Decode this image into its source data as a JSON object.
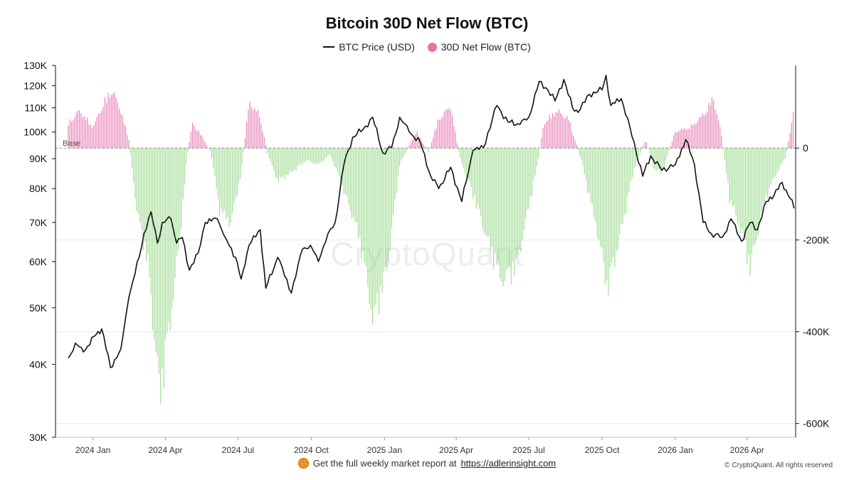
{
  "chart_data": {
    "type": "bar",
    "title": "Bitcoin 30D Net Flow (BTC)",
    "legend": [
      {
        "label": "BTC Price (USD)",
        "kind": "line",
        "color": "#111111"
      },
      {
        "label": "30D Net Flow (BTC)",
        "kind": "dot",
        "color": "#e472ad"
      }
    ],
    "legend_placement": "top-center",
    "baseline_label": "Base",
    "watermark": "CryptoQuant",
    "grid": true,
    "x_ticks": [
      "2024 Jan",
      "2024 Apr",
      "2024 Jul",
      "2024 Oct",
      "2025 Jan",
      "2025 Apr",
      "2025 Jul",
      "2025 Oct",
      "2026 Jan",
      "2026 Apr"
    ],
    "x_range": [
      "2023-11-15",
      "2026-06-01"
    ],
    "y_left": {
      "scale": "log",
      "ticks": [
        "130K",
        "120K",
        "110K",
        "100K",
        "90K",
        "80K",
        "70K",
        "60K",
        "50K",
        "40K",
        "30K"
      ],
      "tick_values": [
        130000,
        120000,
        110000,
        100000,
        90000,
        80000,
        70000,
        60000,
        50000,
        40000,
        30000
      ],
      "ylim": [
        30000,
        130000
      ]
    },
    "y_right": {
      "scale": "linear",
      "ticks": [
        "0",
        "-200K",
        "-400K",
        "-600K"
      ],
      "tick_values": [
        0,
        -200000,
        -400000,
        -600000
      ],
      "ylim": [
        -630000,
        180000
      ]
    },
    "series": [
      {
        "name": "BTC Price (USD)",
        "axis": "left",
        "color": "#111111",
        "points": [
          [
            "2023-12-01",
            41000
          ],
          [
            "2023-12-10",
            43500
          ],
          [
            "2023-12-20",
            42000
          ],
          [
            "2024-01-05",
            45000
          ],
          [
            "2024-01-12",
            46000
          ],
          [
            "2024-01-23",
            39500
          ],
          [
            "2024-02-05",
            42500
          ],
          [
            "2024-02-15",
            52000
          ],
          [
            "2024-02-28",
            61000
          ],
          [
            "2024-03-05",
            67000
          ],
          [
            "2024-03-14",
            73000
          ],
          [
            "2024-03-22",
            64500
          ],
          [
            "2024-03-28",
            70000
          ],
          [
            "2024-04-08",
            71000
          ],
          [
            "2024-04-15",
            64500
          ],
          [
            "2024-04-22",
            66000
          ],
          [
            "2024-05-01",
            58000
          ],
          [
            "2024-05-12",
            62000
          ],
          [
            "2024-05-21",
            70000
          ],
          [
            "2024-06-05",
            71000
          ],
          [
            "2024-06-15",
            66000
          ],
          [
            "2024-06-28",
            61000
          ],
          [
            "2024-07-05",
            56000
          ],
          [
            "2024-07-15",
            64000
          ],
          [
            "2024-07-29",
            68000
          ],
          [
            "2024-08-05",
            54000
          ],
          [
            "2024-08-20",
            61000
          ],
          [
            "2024-09-06",
            53000
          ],
          [
            "2024-09-20",
            63000
          ],
          [
            "2024-09-30",
            64000
          ],
          [
            "2024-10-10",
            60000
          ],
          [
            "2024-10-22",
            67000
          ],
          [
            "2024-10-31",
            70000
          ],
          [
            "2024-11-11",
            88000
          ],
          [
            "2024-11-22",
            98000
          ],
          [
            "2024-12-05",
            101000
          ],
          [
            "2024-12-17",
            106000
          ],
          [
            "2024-12-30",
            92000
          ],
          [
            "2025-01-10",
            94000
          ],
          [
            "2025-01-20",
            106000
          ],
          [
            "2025-02-01",
            100000
          ],
          [
            "2025-02-15",
            96000
          ],
          [
            "2025-02-28",
            84000
          ],
          [
            "2025-03-10",
            80000
          ],
          [
            "2025-03-25",
            87000
          ],
          [
            "2025-04-08",
            76000
          ],
          [
            "2025-04-22",
            93000
          ],
          [
            "2025-05-05",
            94000
          ],
          [
            "2025-05-22",
            111000
          ],
          [
            "2025-06-05",
            104000
          ],
          [
            "2025-06-20",
            103000
          ],
          [
            "2025-07-01",
            106000
          ],
          [
            "2025-07-14",
            122000
          ],
          [
            "2025-07-25",
            118000
          ],
          [
            "2025-08-03",
            113000
          ],
          [
            "2025-08-14",
            123000
          ],
          [
            "2025-08-25",
            110000
          ],
          [
            "2025-09-01",
            108000
          ],
          [
            "2025-09-15",
            116000
          ],
          [
            "2025-10-01",
            118000
          ],
          [
            "2025-10-06",
            125000
          ],
          [
            "2025-10-12",
            111000
          ],
          [
            "2025-10-25",
            114000
          ],
          [
            "2025-11-05",
            102000
          ],
          [
            "2025-11-21",
            84000
          ],
          [
            "2025-12-01",
            91000
          ],
          [
            "2025-12-15",
            86000
          ],
          [
            "2026-01-01",
            88000
          ],
          [
            "2026-01-14",
            97000
          ],
          [
            "2026-01-25",
            88000
          ],
          [
            "2026-02-05",
            70000
          ],
          [
            "2026-02-15",
            67000
          ],
          [
            "2026-03-01",
            66000
          ],
          [
            "2026-03-12",
            71000
          ],
          [
            "2026-03-25",
            65000
          ],
          [
            "2026-04-05",
            70000
          ],
          [
            "2026-04-14",
            68000
          ],
          [
            "2026-04-25",
            76000
          ],
          [
            "2026-05-05",
            78000
          ],
          [
            "2026-05-15",
            82000
          ],
          [
            "2026-05-25",
            77000
          ],
          [
            "2026-05-30",
            74000
          ]
        ]
      },
      {
        "name": "30D Net Flow (BTC)",
        "axis": "right",
        "color_positive": "#e472ad",
        "color_negative": "#8fd67f",
        "points": [
          [
            "2023-12-01",
            60000
          ],
          [
            "2023-12-15",
            90000
          ],
          [
            "2024-01-01",
            50000
          ],
          [
            "2024-01-15",
            110000
          ],
          [
            "2024-01-25",
            140000
          ],
          [
            "2024-02-05",
            90000
          ],
          [
            "2024-02-15",
            20000
          ],
          [
            "2024-02-25",
            -150000
          ],
          [
            "2024-03-10",
            -280000
          ],
          [
            "2024-03-25",
            -600000
          ],
          [
            "2024-04-05",
            -450000
          ],
          [
            "2024-04-20",
            -200000
          ],
          [
            "2024-04-28",
            -20000
          ],
          [
            "2024-05-05",
            60000
          ],
          [
            "2024-05-18",
            25000
          ],
          [
            "2024-05-28",
            -10000
          ],
          [
            "2024-06-08",
            -150000
          ],
          [
            "2024-06-22",
            -180000
          ],
          [
            "2024-07-05",
            -60000
          ],
          [
            "2024-07-15",
            110000
          ],
          [
            "2024-07-28",
            80000
          ],
          [
            "2024-08-08",
            -20000
          ],
          [
            "2024-08-20",
            -80000
          ],
          [
            "2024-09-05",
            -60000
          ],
          [
            "2024-09-25",
            -30000
          ],
          [
            "2024-10-10",
            -40000
          ],
          [
            "2024-10-25",
            -15000
          ],
          [
            "2024-11-10",
            -100000
          ],
          [
            "2024-11-25",
            -180000
          ],
          [
            "2024-12-05",
            -260000
          ],
          [
            "2024-12-18",
            -420000
          ],
          [
            "2025-01-05",
            -280000
          ],
          [
            "2025-01-20",
            -40000
          ],
          [
            "2025-02-10",
            40000
          ],
          [
            "2025-02-25",
            -10000
          ],
          [
            "2025-03-10",
            70000
          ],
          [
            "2025-03-25",
            100000
          ],
          [
            "2025-04-05",
            -20000
          ],
          [
            "2025-04-20",
            -100000
          ],
          [
            "2025-05-10",
            -220000
          ],
          [
            "2025-05-28",
            -320000
          ],
          [
            "2025-06-15",
            -290000
          ],
          [
            "2025-06-30",
            -150000
          ],
          [
            "2025-07-10",
            -60000
          ],
          [
            "2025-07-20",
            60000
          ],
          [
            "2025-08-05",
            90000
          ],
          [
            "2025-08-20",
            70000
          ],
          [
            "2025-09-05",
            -30000
          ],
          [
            "2025-09-25",
            -200000
          ],
          [
            "2025-10-08",
            -340000
          ],
          [
            "2025-10-25",
            -200000
          ],
          [
            "2025-11-10",
            -50000
          ],
          [
            "2025-11-25",
            20000
          ],
          [
            "2025-12-05",
            -50000
          ],
          [
            "2025-12-15",
            -60000
          ],
          [
            "2026-01-01",
            40000
          ],
          [
            "2026-01-20",
            50000
          ],
          [
            "2026-02-05",
            80000
          ],
          [
            "2026-02-18",
            120000
          ],
          [
            "2026-02-28",
            30000
          ],
          [
            "2026-03-10",
            -120000
          ],
          [
            "2026-03-25",
            -200000
          ],
          [
            "2026-04-05",
            -290000
          ],
          [
            "2026-04-20",
            -150000
          ],
          [
            "2026-05-05",
            -70000
          ],
          [
            "2026-05-20",
            -20000
          ],
          [
            "2026-05-30",
            100000
          ]
        ]
      }
    ]
  },
  "footer": {
    "text": "Get the full weekly market report at ",
    "link": "https://adlerinsight.com"
  },
  "copyright": "© CryptoQuant. All rights reserved"
}
